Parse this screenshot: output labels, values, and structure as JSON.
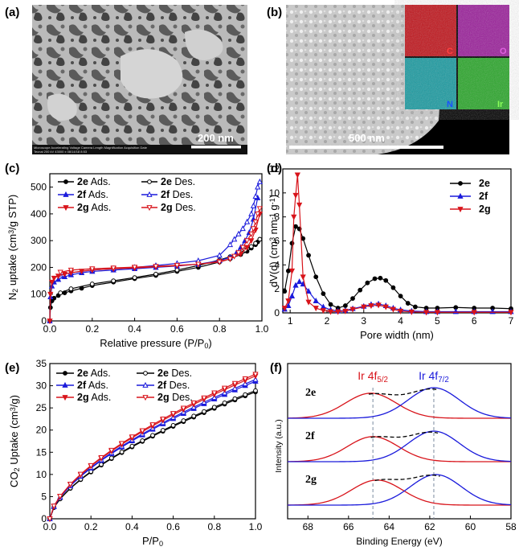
{
  "figure": {
    "panels": {
      "a": "(a)",
      "b": "(b)",
      "c": "(c)",
      "d": "(d)",
      "e": "(e)",
      "f": "(f)"
    },
    "tem": {
      "scale_bar": "200 nm",
      "info_bar": "Microscope Accelerating Voltage Camera Length Magnification Acquisition Date",
      "info_bar_values": "Tecnai          200 kV                       43000 x          08/14/18  8:53"
    },
    "eds": {
      "scale_bar": "500 nm",
      "maps": [
        {
          "label": "C",
          "color": "#c0141b"
        },
        {
          "label": "O",
          "color": "#9a1f9a"
        },
        {
          "label": "N",
          "color": "#1a9aa0"
        },
        {
          "label": "Ir",
          "color": "#2aa62a"
        }
      ]
    }
  },
  "chart_data": [
    {
      "panel": "c",
      "type": "line",
      "xlabel": "Relative pressure (P/P0)",
      "ylabel": "N2 uptake (cm3/g STP)",
      "xlim": [
        0,
        1.0
      ],
      "ylim": [
        0,
        550
      ],
      "xticks": [
        "0.0",
        "0.2",
        "0.4",
        "0.6",
        "0.8",
        "1.0"
      ],
      "yticks": [
        "0",
        "100",
        "200",
        "300",
        "400",
        "500"
      ],
      "legend": [
        "2e Ads.",
        "2e Des.",
        "2f  Ads.",
        "2f  Des.",
        "2g Ads.",
        "2g Des."
      ],
      "series": [
        {
          "name": "2e Ads.",
          "color": "#000000",
          "marker": "filled",
          "x": [
            0,
            0.003,
            0.01,
            0.02,
            0.04,
            0.07,
            0.1,
            0.15,
            0.2,
            0.3,
            0.4,
            0.5,
            0.6,
            0.7,
            0.8,
            0.85,
            0.9,
            0.93,
            0.95,
            0.97,
            0.98,
            0.99
          ],
          "y": [
            0,
            50,
            75,
            85,
            95,
            105,
            112,
            122,
            132,
            145,
            158,
            170,
            185,
            200,
            220,
            232,
            248,
            260,
            272,
            285,
            295,
            305
          ]
        },
        {
          "name": "2e Des.",
          "color": "#000000",
          "marker": "open",
          "x": [
            0.99,
            0.97,
            0.95,
            0.92,
            0.9,
            0.85,
            0.8,
            0.7,
            0.6,
            0.5,
            0.4,
            0.3,
            0.2,
            0.1,
            0.05
          ],
          "y": [
            305,
            290,
            278,
            265,
            255,
            240,
            228,
            207,
            190,
            175,
            162,
            150,
            138,
            120,
            105
          ]
        },
        {
          "name": "2f  Ads.",
          "color": "#1a1adb",
          "marker": "filled",
          "x": [
            0,
            0.003,
            0.01,
            0.02,
            0.04,
            0.07,
            0.1,
            0.15,
            0.2,
            0.3,
            0.4,
            0.5,
            0.6,
            0.7,
            0.8,
            0.85,
            0.88,
            0.9,
            0.92,
            0.94,
            0.96,
            0.98
          ],
          "y": [
            0,
            90,
            130,
            145,
            155,
            165,
            172,
            180,
            185,
            190,
            195,
            200,
            205,
            212,
            225,
            238,
            255,
            275,
            300,
            330,
            380,
            460
          ]
        },
        {
          "name": "2f  Des.",
          "color": "#1a1adb",
          "marker": "open",
          "x": [
            0.99,
            0.98,
            0.97,
            0.96,
            0.95,
            0.93,
            0.91,
            0.89,
            0.87,
            0.85,
            0.8,
            0.7,
            0.6,
            0.5,
            0.4,
            0.3,
            0.2,
            0.1,
            0.05
          ],
          "y": [
            520,
            500,
            465,
            430,
            400,
            370,
            345,
            325,
            305,
            285,
            245,
            225,
            215,
            207,
            200,
            195,
            190,
            180,
            172
          ]
        },
        {
          "name": "2g Ads.",
          "color": "#d8141b",
          "marker": "filled",
          "x": [
            0,
            0.003,
            0.01,
            0.02,
            0.04,
            0.07,
            0.1,
            0.15,
            0.2,
            0.3,
            0.4,
            0.5,
            0.6,
            0.7,
            0.8,
            0.85,
            0.9,
            0.93,
            0.95,
            0.97,
            0.99
          ],
          "y": [
            0,
            100,
            145,
            160,
            168,
            175,
            180,
            186,
            190,
            195,
            198,
            202,
            206,
            212,
            222,
            232,
            250,
            275,
            300,
            340,
            400
          ]
        },
        {
          "name": "2g Des.",
          "color": "#d8141b",
          "marker": "open",
          "x": [
            0.99,
            0.98,
            0.97,
            0.96,
            0.95,
            0.93,
            0.91,
            0.89,
            0.87,
            0.85,
            0.8,
            0.7,
            0.6,
            0.5,
            0.4,
            0.3,
            0.2,
            0.1,
            0.05
          ],
          "y": [
            420,
            400,
            370,
            345,
            325,
            300,
            275,
            255,
            242,
            232,
            220,
            212,
            208,
            204,
            201,
            198,
            195,
            190,
            182
          ]
        }
      ]
    },
    {
      "panel": "d",
      "type": "line",
      "xlabel": "Pore width (nm)",
      "ylabel": "dV(d) (cm3 nm-1 g-1)",
      "xlim": [
        0.8,
        7
      ],
      "ylim": [
        0,
        12
      ],
      "xticks": [
        "1",
        "2",
        "3",
        "4",
        "5",
        "6",
        "7"
      ],
      "yticks": [
        "0",
        "2",
        "4",
        "6",
        "8",
        "10",
        "12"
      ],
      "legend": [
        "2e",
        "2f",
        "2g"
      ],
      "series": [
        {
          "name": "2e",
          "color": "#000000",
          "x": [
            0.85,
            0.95,
            1.05,
            1.15,
            1.25,
            1.35,
            1.5,
            1.7,
            1.9,
            2.1,
            2.3,
            2.5,
            2.7,
            2.9,
            3.1,
            3.3,
            3.45,
            3.6,
            3.8,
            4.0,
            4.2,
            4.4,
            4.7,
            5.0,
            5.5,
            6.0,
            6.5,
            7.0
          ],
          "y": [
            1.8,
            3.5,
            5.8,
            7.2,
            7.0,
            6.2,
            4.8,
            3.0,
            1.6,
            0.7,
            0.4,
            0.6,
            1.2,
            1.9,
            2.5,
            2.85,
            2.9,
            2.7,
            2.1,
            1.4,
            0.8,
            0.5,
            0.4,
            0.4,
            0.45,
            0.4,
            0.4,
            0.35
          ]
        },
        {
          "name": "2f",
          "color": "#1a1adb",
          "x": [
            0.85,
            0.95,
            1.05,
            1.15,
            1.25,
            1.35,
            1.5,
            1.7,
            1.9,
            2.1,
            2.3,
            2.5,
            2.7,
            3.0,
            3.2,
            3.4,
            3.6,
            3.8,
            4.0,
            4.3,
            4.7,
            5.0,
            5.5,
            6.0,
            6.5,
            7.0
          ],
          "y": [
            0.3,
            0.6,
            1.4,
            2.3,
            2.6,
            2.4,
            1.8,
            1.0,
            0.5,
            0.25,
            0.15,
            0.2,
            0.35,
            0.55,
            0.7,
            0.75,
            0.6,
            0.4,
            0.25,
            0.15,
            0.1,
            0.1,
            0.1,
            0.1,
            0.1,
            0.1
          ]
        },
        {
          "name": "2g",
          "color": "#d8141b",
          "x": [
            0.85,
            0.95,
            1.05,
            1.1,
            1.15,
            1.2,
            1.25,
            1.35,
            1.5,
            1.7,
            1.9,
            2.1,
            2.3,
            2.5,
            2.7,
            3.0,
            3.2,
            3.4,
            3.6,
            3.8,
            4.0,
            4.3,
            4.7,
            5.0,
            6.0,
            7.0
          ],
          "y": [
            0.4,
            1.0,
            3.5,
            8.0,
            9.8,
            11.5,
            9.0,
            3.0,
            0.9,
            0.4,
            0.2,
            0.1,
            0.1,
            0.15,
            0.3,
            0.5,
            0.6,
            0.65,
            0.5,
            0.3,
            0.15,
            0.08,
            0.05,
            0.05,
            0.05,
            0.05
          ]
        }
      ]
    },
    {
      "panel": "e",
      "type": "line",
      "xlabel": "P/P0",
      "ylabel": "CO2 Uptake (cm3/g)",
      "xlim": [
        0,
        1.0
      ],
      "ylim": [
        0,
        35
      ],
      "xticks": [
        "0.0",
        "0.2",
        "0.4",
        "0.6",
        "0.8",
        "1.0"
      ],
      "yticks": [
        "0",
        "5",
        "10",
        "15",
        "20",
        "25",
        "30",
        "35"
      ],
      "legend": [
        "2e Ads.",
        "2e Des.",
        "2f Ads.",
        "2f Des.",
        "2g Ads.",
        "2g Des."
      ],
      "series": [
        {
          "name": "2e Ads.",
          "color": "#000000",
          "marker": "filled",
          "scale": 28.6
        },
        {
          "name": "2e Des.",
          "color": "#000000",
          "marker": "open",
          "scale": 28.9
        },
        {
          "name": "2f Ads.",
          "color": "#1a1adb",
          "marker": "filled",
          "scale": 31.0
        },
        {
          "name": "2f Des.",
          "color": "#1a1adb",
          "marker": "open",
          "scale": 31.4
        },
        {
          "name": "2g Ads.",
          "color": "#d8141b",
          "marker": "filled",
          "scale": 32.2
        },
        {
          "name": "2g Des.",
          "color": "#d8141b",
          "marker": "open",
          "scale": 32.6
        }
      ]
    },
    {
      "panel": "f",
      "type": "line",
      "xlabel": "Binding Energy (eV)",
      "ylabel": "Intensity (a.u.)",
      "xlim": [
        69,
        58
      ],
      "xticks": [
        "68",
        "66",
        "64",
        "62",
        "60",
        "58"
      ],
      "peaks": {
        "Ir 4f5/2": 64.8,
        "Ir 4f7/2": 61.8
      },
      "peak_labels": {
        "left": "Ir 4f",
        "left_sub": "5/2",
        "right": "Ir 4f",
        "right_sub": "7/2"
      },
      "series": [
        {
          "name": "2e",
          "peak_52": 64.9,
          "peak_72": 61.8
        },
        {
          "name": "2f",
          "peak_52": 64.8,
          "peak_72": 61.8
        },
        {
          "name": "2g",
          "peak_52": 64.6,
          "peak_72": 61.7
        }
      ]
    }
  ]
}
